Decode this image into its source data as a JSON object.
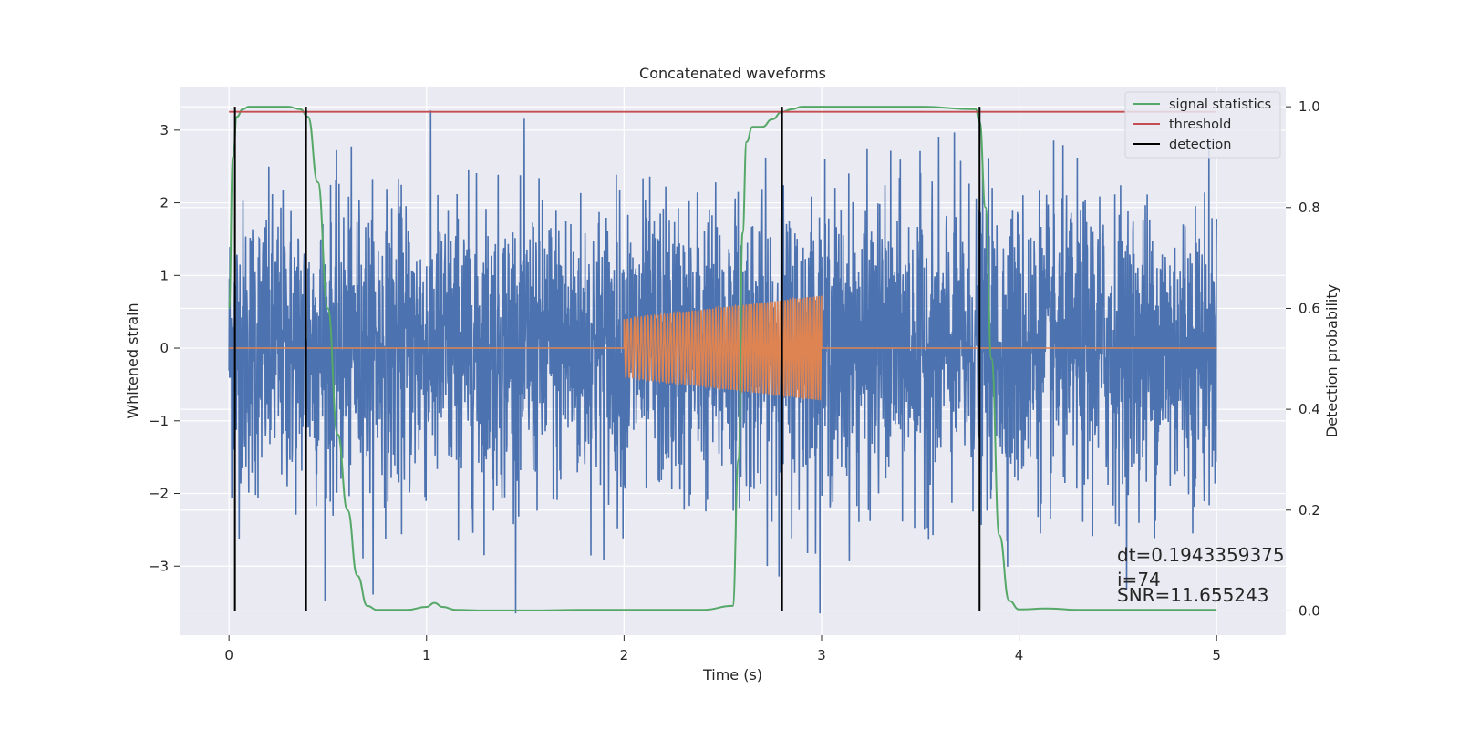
{
  "chart_data": {
    "type": "line",
    "title": "Concatenated waveforms",
    "xlabel": "Time (s)",
    "ylabel": "Whitened strain",
    "y2label": "Detection probability",
    "xlim": [
      -0.25,
      5.35
    ],
    "ylim": [
      -3.95,
      3.6
    ],
    "y2lim": [
      -0.048,
      1.04
    ],
    "xticks": [
      0,
      1,
      2,
      3,
      4,
      5
    ],
    "xtick_labels": [
      "0",
      "1",
      "2",
      "3",
      "4",
      "5"
    ],
    "yticks": [
      -3,
      -2,
      -1,
      0,
      1,
      2,
      3
    ],
    "ytick_labels": [
      "−3",
      "−2",
      "−1",
      "0",
      "1",
      "2",
      "3"
    ],
    "y2ticks": [
      0.0,
      0.2,
      0.4,
      0.6,
      0.8,
      1.0
    ],
    "y2tick_labels": [
      "0.0",
      "0.2",
      "0.4",
      "0.6",
      "0.8",
      "1.0"
    ],
    "grid": true,
    "legend_position": "top-right",
    "legend": [
      {
        "label": "signal statistics",
        "color": "#55a868"
      },
      {
        "label": "threshold",
        "color": "#c44e52"
      },
      {
        "label": "detection",
        "color": "#000000"
      }
    ],
    "colors": {
      "strain": "#4c72b0",
      "template": "#dd8452",
      "signal_statistics": "#55a868",
      "threshold": "#c44e52",
      "detection": "#000000",
      "plot_bg": "#eaeaf2",
      "grid": "#ffffff"
    },
    "series": [
      {
        "kind": "noise",
        "axis": "left",
        "x_range": [
          0,
          5
        ],
        "amplitude_typical": 1.0,
        "min": -3.65,
        "max": 3.27
      },
      {
        "kind": "chirp",
        "axis": "left",
        "x_range": [
          2.0,
          3.0
        ],
        "amplitude_start": 0.4,
        "amplitude_end": 0.72,
        "cycles": 70
      },
      {
        "name": "signal statistics",
        "axis": "right",
        "x": [
          0.0,
          0.02,
          0.04,
          0.07,
          0.1,
          0.2,
          0.3,
          0.36,
          0.4,
          0.45,
          0.5,
          0.55,
          0.6,
          0.65,
          0.7,
          0.75,
          0.9,
          1.0,
          1.04,
          1.08,
          1.15,
          1.3,
          1.5,
          1.8,
          2.0,
          2.2,
          2.4,
          2.55,
          2.58,
          2.6,
          2.62,
          2.65,
          2.7,
          2.75,
          2.8,
          2.85,
          2.9,
          3.0,
          3.2,
          3.5,
          3.78,
          3.8,
          3.83,
          3.86,
          3.9,
          3.95,
          4.0,
          4.15,
          4.3,
          4.6,
          5.0
        ],
        "y": [
          0.6,
          0.9,
          0.98,
          0.995,
          1.0,
          1.0,
          1.0,
          0.995,
          0.98,
          0.85,
          0.6,
          0.35,
          0.2,
          0.07,
          0.01,
          0.002,
          0.002,
          0.008,
          0.016,
          0.008,
          0.002,
          0.001,
          0.001,
          0.002,
          0.002,
          0.002,
          0.002,
          0.01,
          0.3,
          0.75,
          0.93,
          0.96,
          0.96,
          0.975,
          0.99,
          0.995,
          1.0,
          1.0,
          1.0,
          1.0,
          0.995,
          0.97,
          0.8,
          0.5,
          0.15,
          0.02,
          0.003,
          0.005,
          0.002,
          0.002,
          0.002
        ]
      },
      {
        "name": "threshold",
        "axis": "right",
        "x": [
          0,
          5
        ],
        "y": [
          0.99,
          0.99
        ]
      },
      {
        "name": "detection",
        "axis": "right",
        "type": "vlines",
        "x": [
          0.03,
          0.39,
          2.8,
          3.8
        ],
        "ymin": 0.0,
        "ymax": 1.0
      }
    ],
    "annotations": [
      {
        "text": "dt=0.1943359375",
        "x": 4.5,
        "y2": 0.1
      },
      {
        "text": " i=74",
        "x": 4.5,
        "y2": 0.05
      },
      {
        "text": "SNR=11.655243",
        "x": 4.5,
        "y2": 0.02
      }
    ]
  }
}
